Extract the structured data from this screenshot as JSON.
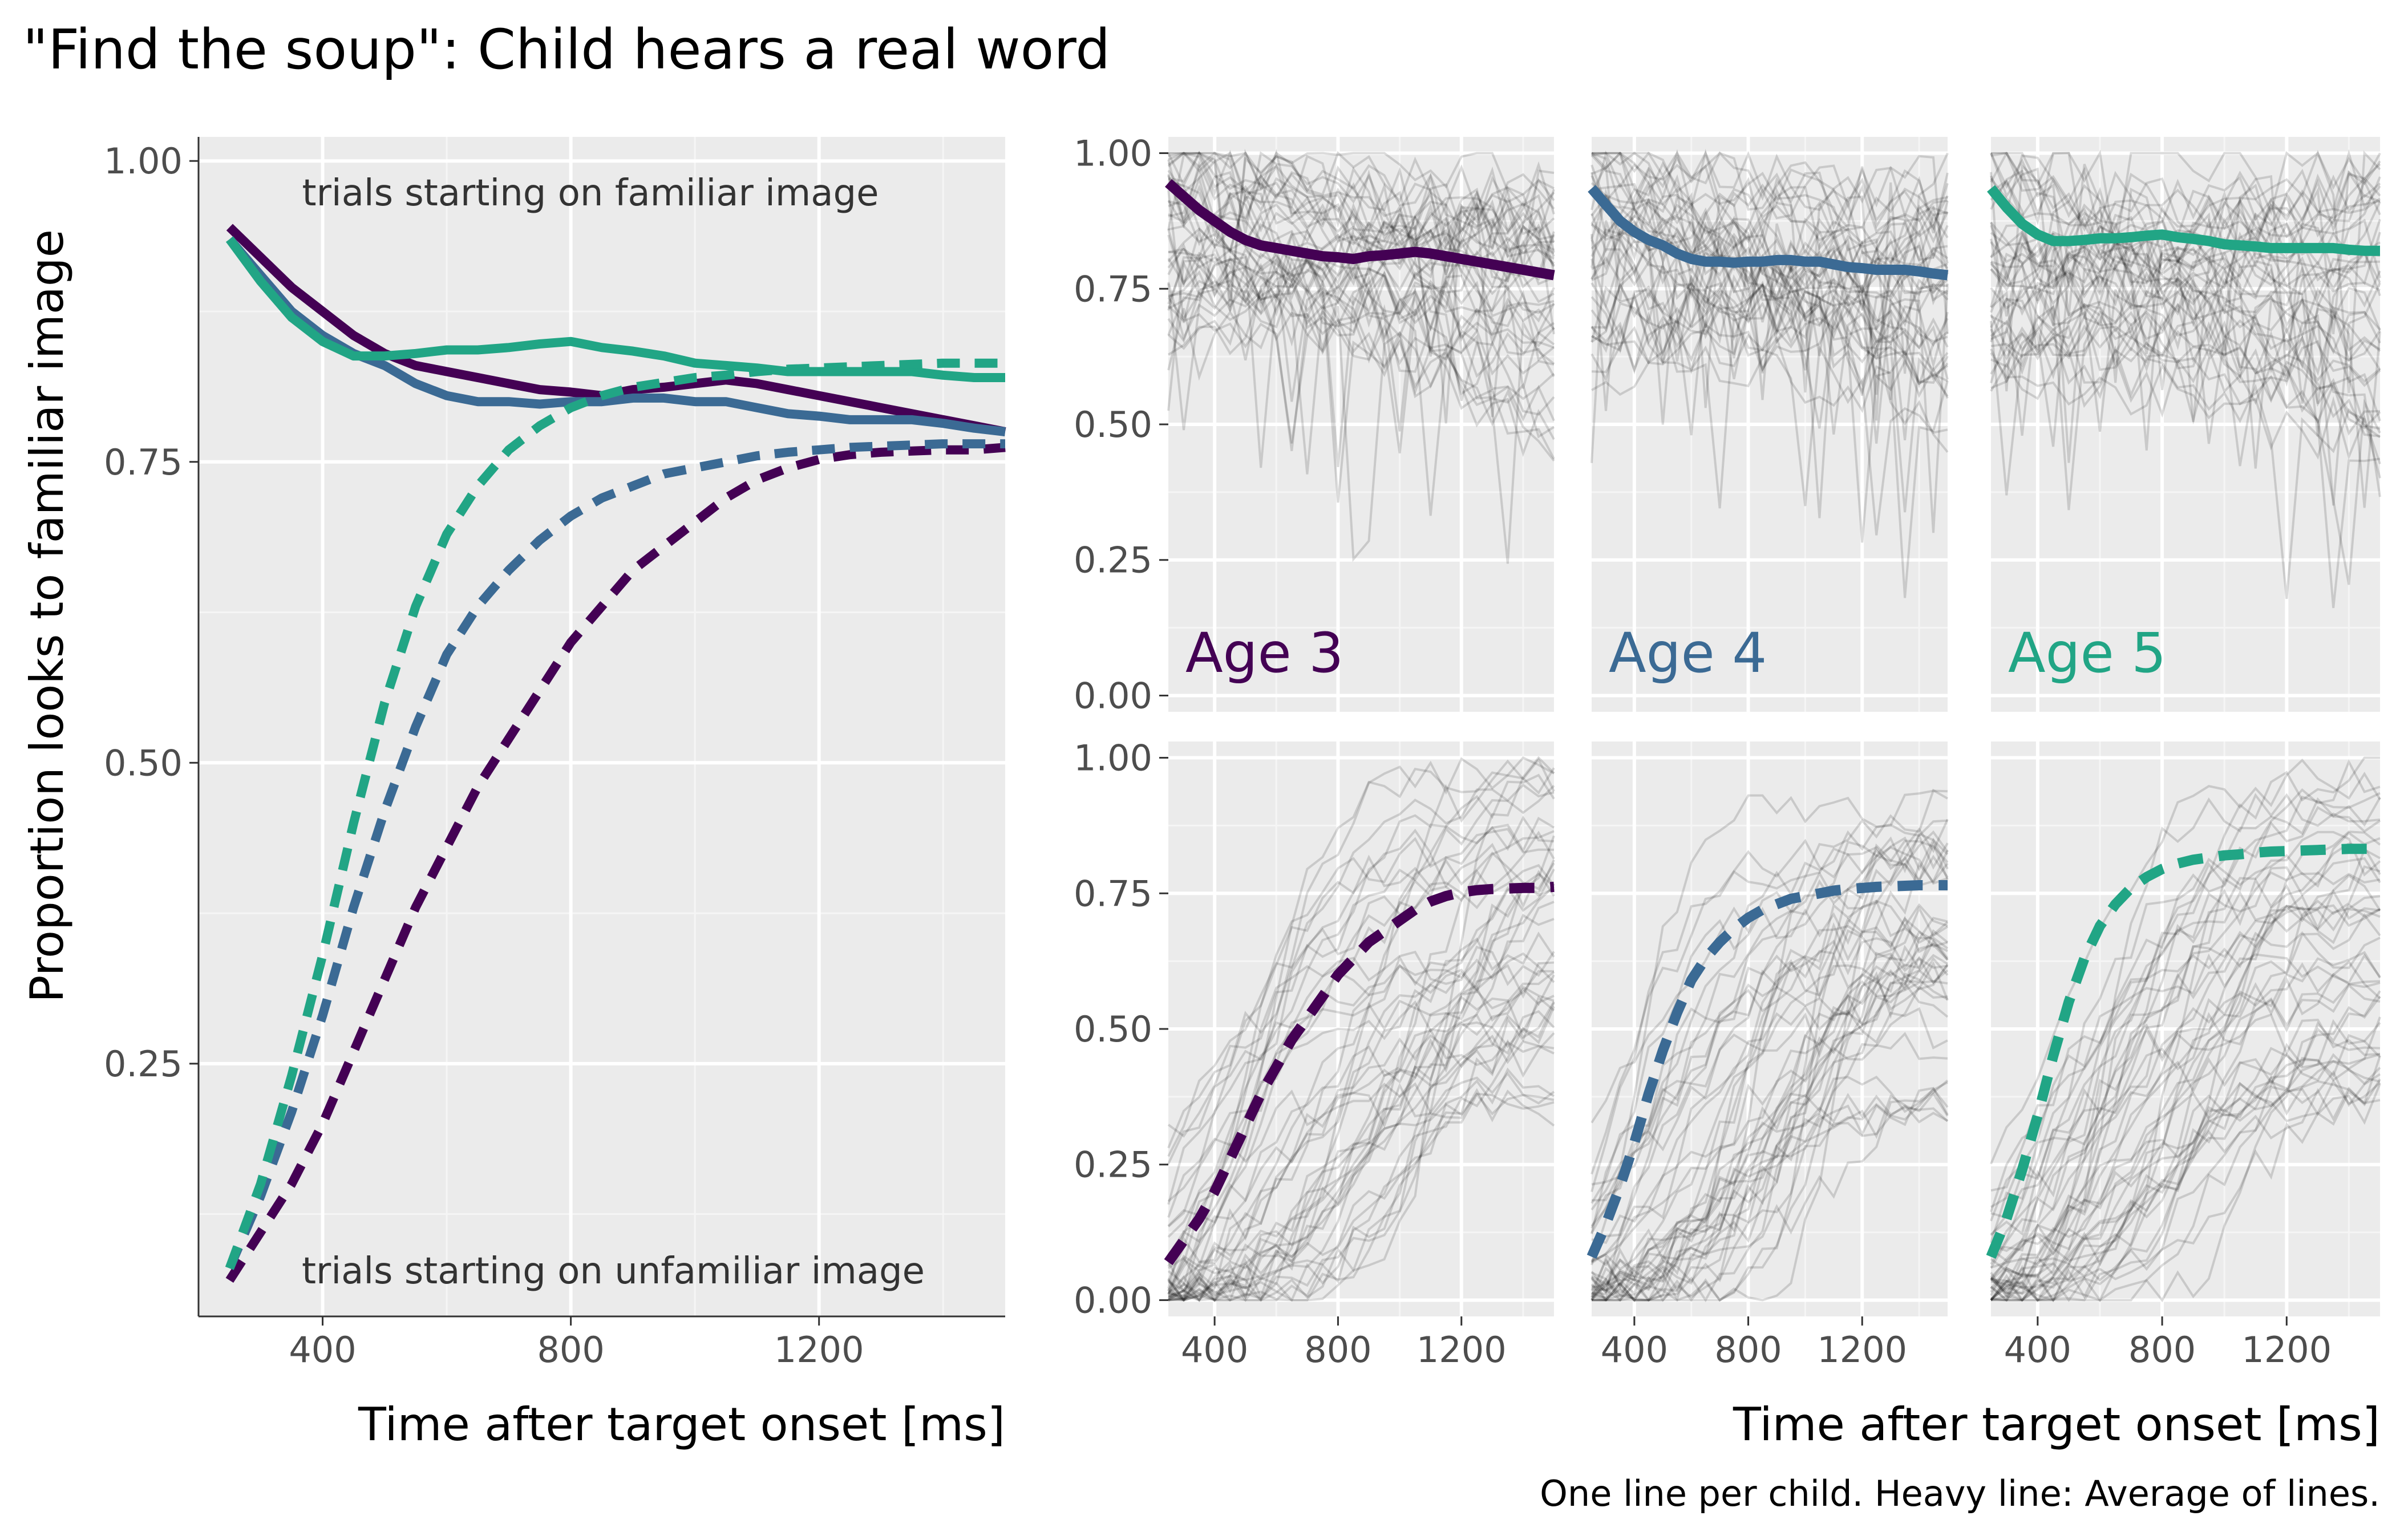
{
  "chart_data": {
    "type": "line",
    "title": "\"Find the soup\": Child hears a real word",
    "caption": "One line per child. Heavy line: Average of lines.",
    "xlabel": "Time after target onset [ms]",
    "ylabel": "Proportion looks to familiar image",
    "colors": {
      "age3": "#440154",
      "age4": "#3b6a94",
      "age5": "#21a585"
    },
    "main_panel": {
      "xlim": [
        200,
        1500
      ],
      "ylim": [
        0.04,
        1.02
      ],
      "xticks": [
        400,
        800,
        1200
      ],
      "yticks": [
        0.25,
        0.5,
        0.75,
        1.0
      ],
      "ytick_labels": [
        "0.25",
        "0.50",
        "0.75",
        "1.00"
      ],
      "xtick_labels": [
        "400",
        "800",
        "1200"
      ],
      "annotations": {
        "top": "trials starting on familiar image",
        "bottom": "trials starting on unfamiliar image"
      },
      "x": [
        250,
        300,
        350,
        400,
        450,
        500,
        550,
        600,
        650,
        700,
        750,
        800,
        850,
        900,
        950,
        1000,
        1050,
        1100,
        1150,
        1200,
        1250,
        1300,
        1350,
        1400,
        1450,
        1500
      ],
      "series": [
        {
          "name": "Age 3",
          "condition": "familiar",
          "style": "solid",
          "values": [
            0.945,
            0.92,
            0.895,
            0.875,
            0.855,
            0.84,
            0.83,
            0.825,
            0.82,
            0.815,
            0.81,
            0.808,
            0.805,
            0.81,
            0.812,
            0.815,
            0.818,
            0.815,
            0.81,
            0.805,
            0.8,
            0.795,
            0.79,
            0.785,
            0.78,
            0.775
          ]
        },
        {
          "name": "Age 4",
          "condition": "familiar",
          "style": "solid",
          "values": [
            0.935,
            0.905,
            0.875,
            0.855,
            0.84,
            0.83,
            0.815,
            0.805,
            0.8,
            0.8,
            0.798,
            0.8,
            0.8,
            0.803,
            0.803,
            0.8,
            0.8,
            0.795,
            0.79,
            0.788,
            0.785,
            0.785,
            0.785,
            0.782,
            0.778,
            0.775
          ]
        },
        {
          "name": "Age 5",
          "condition": "familiar",
          "style": "solid",
          "values": [
            0.935,
            0.9,
            0.87,
            0.85,
            0.838,
            0.838,
            0.84,
            0.843,
            0.843,
            0.845,
            0.848,
            0.85,
            0.845,
            0.842,
            0.838,
            0.832,
            0.83,
            0.828,
            0.825,
            0.825,
            0.825,
            0.825,
            0.825,
            0.822,
            0.82,
            0.82
          ]
        },
        {
          "name": "Age 3",
          "condition": "unfamiliar",
          "style": "dashed",
          "values": [
            0.07,
            0.11,
            0.15,
            0.2,
            0.26,
            0.32,
            0.38,
            0.43,
            0.48,
            0.52,
            0.56,
            0.6,
            0.63,
            0.66,
            0.68,
            0.7,
            0.72,
            0.735,
            0.745,
            0.752,
            0.756,
            0.758,
            0.759,
            0.76,
            0.76,
            0.762
          ]
        },
        {
          "name": "Age 4",
          "condition": "unfamiliar",
          "style": "dashed",
          "values": [
            0.08,
            0.14,
            0.21,
            0.29,
            0.38,
            0.46,
            0.53,
            0.59,
            0.63,
            0.66,
            0.685,
            0.705,
            0.72,
            0.73,
            0.74,
            0.745,
            0.75,
            0.755,
            0.758,
            0.76,
            0.762,
            0.763,
            0.764,
            0.765,
            0.765,
            0.765
          ]
        },
        {
          "name": "Age 5",
          "condition": "unfamiliar",
          "style": "dashed",
          "values": [
            0.08,
            0.15,
            0.24,
            0.34,
            0.45,
            0.55,
            0.63,
            0.69,
            0.73,
            0.76,
            0.78,
            0.795,
            0.805,
            0.812,
            0.816,
            0.82,
            0.822,
            0.825,
            0.827,
            0.828,
            0.829,
            0.83,
            0.831,
            0.832,
            0.832,
            0.832
          ]
        }
      ]
    },
    "facets": {
      "xlim": [
        250,
        1500
      ],
      "ylim": [
        -0.03,
        1.03
      ],
      "xticks": [
        400,
        800,
        1200
      ],
      "xtick_labels": [
        "400",
        "800",
        "1200"
      ],
      "yticks": [
        0,
        0.25,
        0.5,
        0.75,
        1.0
      ],
      "ytick_labels": [
        "0.00",
        "0.25",
        "0.50",
        "0.75",
        "1.00"
      ],
      "columns": [
        "Age 3",
        "Age 4",
        "Age 5"
      ],
      "rows": [
        "familiar",
        "unfamiliar"
      ],
      "x": [
        250,
        300,
        350,
        400,
        450,
        500,
        550,
        600,
        650,
        700,
        750,
        800,
        850,
        900,
        950,
        1000,
        1050,
        1100,
        1150,
        1200,
        1250,
        1300,
        1350,
        1400,
        1450,
        1500
      ],
      "note": "Thin grey lines: one per child; heavy colored line: average (same as main panel series)."
    }
  }
}
